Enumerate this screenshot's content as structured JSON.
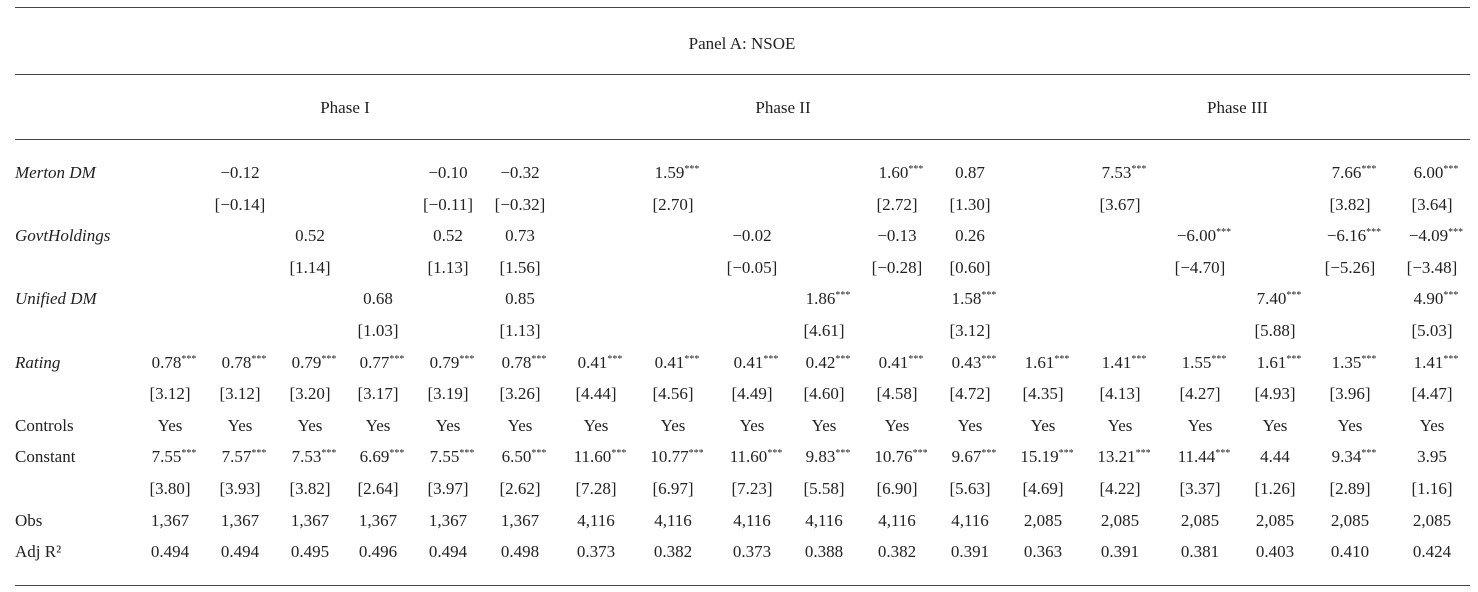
{
  "panel_title": "Panel A: NSOE",
  "phases": [
    "Phase I",
    "Phase II",
    "Phase III"
  ],
  "table": {
    "rows": [
      {
        "label": "Merton DM",
        "italic": true,
        "cells": [
          null,
          {
            "v": "−0.12"
          },
          null,
          null,
          {
            "v": "−0.10"
          },
          {
            "v": "−0.32"
          },
          null,
          {
            "v": "1.59",
            "s": "***"
          },
          null,
          null,
          {
            "v": "1.60",
            "s": "***"
          },
          {
            "v": "0.87"
          },
          null,
          {
            "v": "7.53",
            "s": "***"
          },
          null,
          null,
          {
            "v": "7.66",
            "s": "***"
          },
          {
            "v": "6.00",
            "s": "***"
          }
        ],
        "tstats": [
          null,
          "[−0.14]",
          null,
          null,
          "[−0.11]",
          "[−0.32]",
          null,
          "[2.70]",
          null,
          null,
          "[2.72]",
          "[1.30]",
          null,
          "[3.67]",
          null,
          null,
          "[3.82]",
          "[3.64]"
        ]
      },
      {
        "label": "GovtHoldings",
        "italic": true,
        "cells": [
          null,
          null,
          {
            "v": "0.52"
          },
          null,
          {
            "v": "0.52"
          },
          {
            "v": "0.73"
          },
          null,
          null,
          {
            "v": "−0.02"
          },
          null,
          {
            "v": "−0.13"
          },
          {
            "v": "0.26"
          },
          null,
          null,
          {
            "v": "−6.00",
            "s": "***"
          },
          null,
          {
            "v": "−6.16",
            "s": "***"
          },
          {
            "v": "−4.09",
            "s": "***"
          }
        ],
        "tstats": [
          null,
          null,
          "[1.14]",
          null,
          "[1.13]",
          "[1.56]",
          null,
          null,
          "[−0.05]",
          null,
          "[−0.28]",
          "[0.60]",
          null,
          null,
          "[−4.70]",
          null,
          "[−5.26]",
          "[−3.48]"
        ]
      },
      {
        "label": "Unified DM",
        "italic": true,
        "cells": [
          null,
          null,
          null,
          {
            "v": "0.68"
          },
          null,
          {
            "v": "0.85"
          },
          null,
          null,
          null,
          {
            "v": "1.86",
            "s": "***"
          },
          null,
          {
            "v": "1.58",
            "s": "***"
          },
          null,
          null,
          null,
          {
            "v": "7.40",
            "s": "***"
          },
          null,
          {
            "v": "4.90",
            "s": "***"
          }
        ],
        "tstats": [
          null,
          null,
          null,
          "[1.03]",
          null,
          "[1.13]",
          null,
          null,
          null,
          "[4.61]",
          null,
          "[3.12]",
          null,
          null,
          null,
          "[5.88]",
          null,
          "[5.03]"
        ]
      },
      {
        "label": "Rating",
        "italic": true,
        "cells": [
          {
            "v": "0.78",
            "s": "***"
          },
          {
            "v": "0.78",
            "s": "***"
          },
          {
            "v": "0.79",
            "s": "***"
          },
          {
            "v": "0.77",
            "s": "***"
          },
          {
            "v": "0.79",
            "s": "***"
          },
          {
            "v": "0.78",
            "s": "***"
          },
          {
            "v": "0.41",
            "s": "***"
          },
          {
            "v": "0.41",
            "s": "***"
          },
          {
            "v": "0.41",
            "s": "***"
          },
          {
            "v": "0.42",
            "s": "***"
          },
          {
            "v": "0.41",
            "s": "***"
          },
          {
            "v": "0.43",
            "s": "***"
          },
          {
            "v": "1.61",
            "s": "***"
          },
          {
            "v": "1.41",
            "s": "***"
          },
          {
            "v": "1.55",
            "s": "***"
          },
          {
            "v": "1.61",
            "s": "***"
          },
          {
            "v": "1.35",
            "s": "***"
          },
          {
            "v": "1.41",
            "s": "***"
          }
        ],
        "tstats": [
          "[3.12]",
          "[3.12]",
          "[3.20]",
          "[3.17]",
          "[3.19]",
          "[3.26]",
          "[4.44]",
          "[4.56]",
          "[4.49]",
          "[4.60]",
          "[4.58]",
          "[4.72]",
          "[4.35]",
          "[4.13]",
          "[4.27]",
          "[4.93]",
          "[3.96]",
          "[4.47]"
        ]
      },
      {
        "label": "Controls",
        "cells": [
          {
            "v": "Yes"
          },
          {
            "v": "Yes"
          },
          {
            "v": "Yes"
          },
          {
            "v": "Yes"
          },
          {
            "v": "Yes"
          },
          {
            "v": "Yes"
          },
          {
            "v": "Yes"
          },
          {
            "v": "Yes"
          },
          {
            "v": "Yes"
          },
          {
            "v": "Yes"
          },
          {
            "v": "Yes"
          },
          {
            "v": "Yes"
          },
          {
            "v": "Yes"
          },
          {
            "v": "Yes"
          },
          {
            "v": "Yes"
          },
          {
            "v": "Yes"
          },
          {
            "v": "Yes"
          },
          {
            "v": "Yes"
          }
        ]
      },
      {
        "label": "Constant",
        "cells": [
          {
            "v": "7.55",
            "s": "***"
          },
          {
            "v": "7.57",
            "s": "***"
          },
          {
            "v": "7.53",
            "s": "***"
          },
          {
            "v": "6.69",
            "s": "***"
          },
          {
            "v": "7.55",
            "s": "***"
          },
          {
            "v": "6.50",
            "s": "***"
          },
          {
            "v": "11.60",
            "s": "***"
          },
          {
            "v": "10.77",
            "s": "***"
          },
          {
            "v": "11.60",
            "s": "***"
          },
          {
            "v": "9.83",
            "s": "***"
          },
          {
            "v": "10.76",
            "s": "***"
          },
          {
            "v": "9.67",
            "s": "***"
          },
          {
            "v": "15.19",
            "s": "***"
          },
          {
            "v": "13.21",
            "s": "***"
          },
          {
            "v": "11.44",
            "s": "***"
          },
          {
            "v": "4.44"
          },
          {
            "v": "9.34",
            "s": "***"
          },
          {
            "v": "3.95"
          }
        ],
        "tstats": [
          "[3.80]",
          "[3.93]",
          "[3.82]",
          "[2.64]",
          "[3.97]",
          "[2.62]",
          "[7.28]",
          "[6.97]",
          "[7.23]",
          "[5.58]",
          "[6.90]",
          "[5.63]",
          "[4.69]",
          "[4.22]",
          "[3.37]",
          "[1.26]",
          "[2.89]",
          "[1.16]"
        ]
      },
      {
        "label": "Obs",
        "cells": [
          {
            "v": "1,367"
          },
          {
            "v": "1,367"
          },
          {
            "v": "1,367"
          },
          {
            "v": "1,367"
          },
          {
            "v": "1,367"
          },
          {
            "v": "1,367"
          },
          {
            "v": "4,116"
          },
          {
            "v": "4,116"
          },
          {
            "v": "4,116"
          },
          {
            "v": "4,116"
          },
          {
            "v": "4,116"
          },
          {
            "v": "4,116"
          },
          {
            "v": "2,085"
          },
          {
            "v": "2,085"
          },
          {
            "v": "2,085"
          },
          {
            "v": "2,085"
          },
          {
            "v": "2,085"
          },
          {
            "v": "2,085"
          }
        ]
      },
      {
        "label": "Adj R²",
        "cells": [
          {
            "v": "0.494"
          },
          {
            "v": "0.494"
          },
          {
            "v": "0.495"
          },
          {
            "v": "0.496"
          },
          {
            "v": "0.494"
          },
          {
            "v": "0.498"
          },
          {
            "v": "0.373"
          },
          {
            "v": "0.382"
          },
          {
            "v": "0.373"
          },
          {
            "v": "0.388"
          },
          {
            "v": "0.382"
          },
          {
            "v": "0.391"
          },
          {
            "v": "0.363"
          },
          {
            "v": "0.391"
          },
          {
            "v": "0.381"
          },
          {
            "v": "0.403"
          },
          {
            "v": "0.410"
          },
          {
            "v": "0.424"
          }
        ]
      }
    ]
  }
}
